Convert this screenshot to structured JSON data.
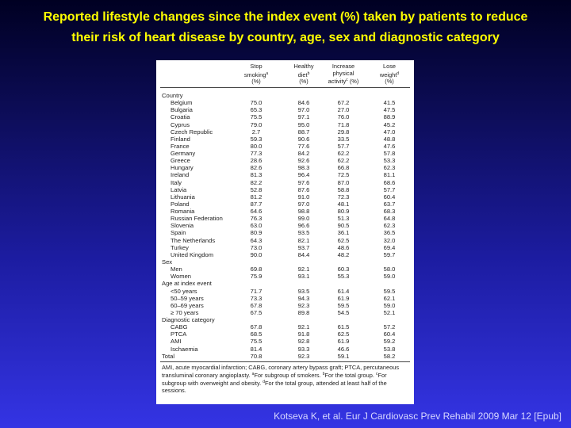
{
  "title": [
    "Reported lifestyle changes since the index event (%) taken by patients to reduce",
    "their risk of heart disease by country, age, sex and diagnostic category"
  ],
  "table": {
    "columns": [
      {
        "lines": [
          "Stop",
          "smoking"
        ],
        "sup": "a",
        "unit": "(%)"
      },
      {
        "lines": [
          "Healthy",
          "diet"
        ],
        "sup": "b",
        "unit": "(%)"
      },
      {
        "lines": [
          "Increase",
          "physical",
          "activity"
        ],
        "sup": "c",
        "unit": "(%)"
      },
      {
        "lines": [
          "Lose",
          "weight"
        ],
        "sup": "d",
        "unit": "(%)"
      }
    ],
    "rows": [
      {
        "section": "Country"
      },
      {
        "label": "Belgium",
        "values": [
          "75.0",
          "84.6",
          "67.2",
          "41.5"
        ]
      },
      {
        "label": "Bulgaria",
        "values": [
          "65.3",
          "97.0",
          "27.0",
          "47.5"
        ]
      },
      {
        "label": "Croatia",
        "values": [
          "75.5",
          "97.1",
          "76.0",
          "88.9"
        ]
      },
      {
        "label": "Cyprus",
        "values": [
          "79.0",
          "95.0",
          "71.8",
          "45.2"
        ]
      },
      {
        "label": "Czech Republic",
        "values": [
          "2.7",
          "88.7",
          "29.8",
          "47.0"
        ]
      },
      {
        "label": "Finland",
        "values": [
          "59.3",
          "90.6",
          "33.5",
          "48.8"
        ]
      },
      {
        "label": "France",
        "values": [
          "80.0",
          "77.6",
          "57.7",
          "47.6"
        ]
      },
      {
        "label": "Germany",
        "values": [
          "77.3",
          "84.2",
          "62.2",
          "57.8"
        ]
      },
      {
        "label": "Greece",
        "values": [
          "28.6",
          "92.6",
          "62.2",
          "53.3"
        ]
      },
      {
        "label": "Hungary",
        "values": [
          "82.6",
          "98.3",
          "66.8",
          "62.3"
        ]
      },
      {
        "label": "Ireland",
        "values": [
          "81.3",
          "96.4",
          "72.5",
          "81.1"
        ]
      },
      {
        "label": "Italy",
        "values": [
          "82.2",
          "97.6",
          "87.0",
          "68.6"
        ]
      },
      {
        "label": "Latvia",
        "values": [
          "52.8",
          "87.6",
          "58.8",
          "57.7"
        ]
      },
      {
        "label": "Lithuania",
        "values": [
          "81.2",
          "91.0",
          "72.3",
          "60.4"
        ]
      },
      {
        "label": "Poland",
        "values": [
          "87.7",
          "97.0",
          "48.1",
          "63.7"
        ]
      },
      {
        "label": "Romania",
        "values": [
          "64.6",
          "98.8",
          "80.9",
          "68.3"
        ]
      },
      {
        "label": "Russian Federation",
        "values": [
          "76.3",
          "99.0",
          "51.3",
          "64.8"
        ]
      },
      {
        "label": "Slovenia",
        "values": [
          "63.0",
          "96.6",
          "90.5",
          "62.3"
        ]
      },
      {
        "label": "Spain",
        "values": [
          "80.9",
          "93.5",
          "36.1",
          "36.5"
        ]
      },
      {
        "label": "The Netherlands",
        "values": [
          "64.3",
          "82.1",
          "62.5",
          "32.0"
        ]
      },
      {
        "label": "Turkey",
        "values": [
          "73.0",
          "93.7",
          "48.6",
          "69.4"
        ]
      },
      {
        "label": "United Kingdom",
        "values": [
          "90.0",
          "84.4",
          "48.2",
          "59.7"
        ]
      },
      {
        "section": "Sex"
      },
      {
        "label": "Men",
        "values": [
          "69.8",
          "92.1",
          "60.3",
          "58.0"
        ]
      },
      {
        "label": "Women",
        "values": [
          "75.9",
          "93.1",
          "55.3",
          "59.0"
        ]
      },
      {
        "section": "Age at index event"
      },
      {
        "label": "<50 years",
        "values": [
          "71.7",
          "93.5",
          "61.4",
          "59.5"
        ]
      },
      {
        "label": "50–59 years",
        "values": [
          "73.3",
          "94.3",
          "61.9",
          "62.1"
        ]
      },
      {
        "label": "60–69 years",
        "values": [
          "67.8",
          "92.3",
          "59.5",
          "59.0"
        ]
      },
      {
        "label": "≥ 70 years",
        "values": [
          "67.5",
          "89.8",
          "54.5",
          "52.1"
        ]
      },
      {
        "section": "Diagnostic category"
      },
      {
        "label": "CABG",
        "values": [
          "67.8",
          "92.1",
          "61.5",
          "57.2"
        ]
      },
      {
        "label": "PTCA",
        "values": [
          "68.5",
          "91.8",
          "62.5",
          "60.4"
        ]
      },
      {
        "label": "AMI",
        "values": [
          "75.5",
          "92.8",
          "61.9",
          "59.2"
        ]
      },
      {
        "label": "Ischaemia",
        "values": [
          "81.4",
          "93.3",
          "46.6",
          "53.8"
        ]
      },
      {
        "total": "Total",
        "values": [
          "70.8",
          "92.3",
          "59.1",
          "58.2"
        ]
      }
    ],
    "footnote": [
      {
        "t": "AMI, acute myocardial infarction; CABG, coronary artery bypass graft; PTCA, percutaneous transluminal coronary angioplasty. "
      },
      {
        "s": "a"
      },
      {
        "t": "For subgroup of smokers. "
      },
      {
        "s": "b"
      },
      {
        "t": "For the total group. "
      },
      {
        "s": "c"
      },
      {
        "t": "For subgroup with overweight and obesity. "
      },
      {
        "s": "d"
      },
      {
        "t": "For the total group, attended at least half of the sessions."
      }
    ]
  },
  "citation": "Kotseva K, et al. Eur J Cardiovasc Prev Rehabil 2009 Mar 12 [Epub]"
}
